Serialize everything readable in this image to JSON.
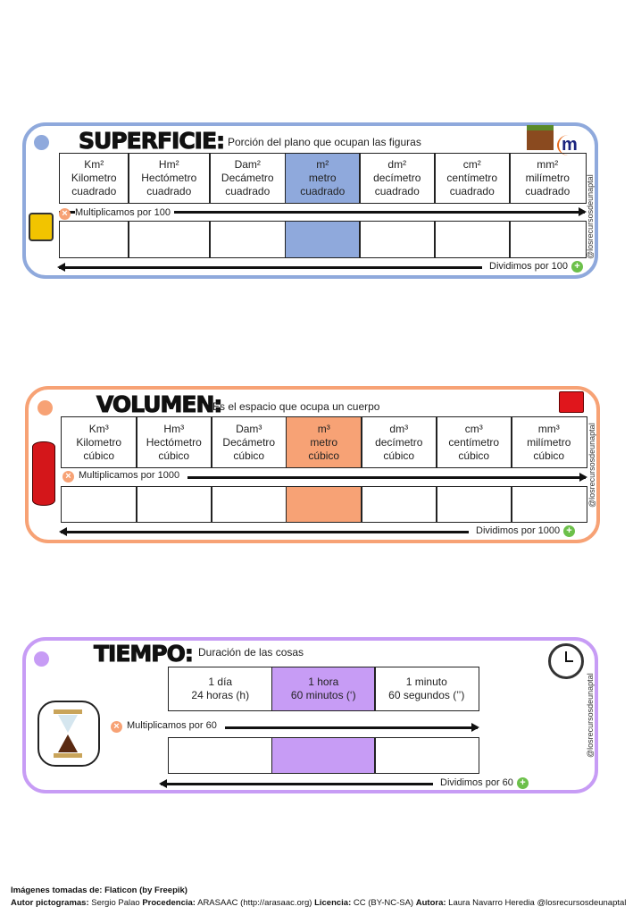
{
  "handle": "@losrecursosdeunaptal",
  "sections": [
    {
      "key": "superficie",
      "title": "SUPERFICIE:",
      "subtitle": "Porción del plano que ocupan las figuras",
      "color": "#8fa9dc",
      "units": [
        [
          "Km²",
          "Kilometro",
          "cuadrado"
        ],
        [
          "Hm²",
          "Hectómetro",
          "cuadrado"
        ],
        [
          "Dam²",
          "Decámetro",
          "cuadrado"
        ],
        [
          "m²",
          "metro",
          "cuadrado"
        ],
        [
          "dm²",
          "decímetro",
          "cuadrado"
        ],
        [
          "cm²",
          "centímetro",
          "cuadrado"
        ],
        [
          "mm²",
          "milímetro",
          "cuadrado"
        ]
      ],
      "highlight": 3,
      "multiply": "Multiplicamos por 100",
      "divide": "Dividimos por 100",
      "icon": "m2-icon",
      "icon_text": "m",
      "side_icon": "tape-measure-icon"
    },
    {
      "key": "volumen",
      "title": "VOLUMEN:",
      "subtitle": "Es el espacio que ocupa un cuerpo",
      "color": "#f7a275",
      "units": [
        [
          "Km³",
          "Kilometro",
          "cúbico"
        ],
        [
          "Hm³",
          "Hectómetro",
          "cúbico"
        ],
        [
          "Dam³",
          "Decámetro",
          "cúbico"
        ],
        [
          "m³",
          "metro",
          "cúbico"
        ],
        [
          "dm³",
          "decímetro",
          "cúbico"
        ],
        [
          "cm³",
          "centímetro",
          "cúbico"
        ],
        [
          "mm³",
          "milímetro",
          "cúbico"
        ]
      ],
      "highlight": 3,
      "multiply": "Multiplicamos por 1000",
      "divide": "Dividimos por 1000",
      "icon": "cube-icon",
      "side_icon": "cylinder-icon"
    },
    {
      "key": "tiempo",
      "title": "TIEMPO:",
      "subtitle": "Duración de las cosas",
      "color": "#c79cf5",
      "units": [
        [
          "1 día",
          "24 horas (h)"
        ],
        [
          "1 hora",
          "60 minutos (‘)"
        ],
        [
          "1 minuto",
          "60 segundos (’’)"
        ]
      ],
      "highlight": 1,
      "multiply": "Multiplicamos por 60",
      "divide": "Dividimos por 60",
      "icon": "clock-icon",
      "side_icon": "hourglass-icon"
    }
  ],
  "footer": {
    "line1_label": "Imágenes tomadas de:",
    "line1_value": "Flaticon (by Freepik)",
    "autor_label": "Autor pictogramas:",
    "autor": "Sergio Palao",
    "proc_label": "Procedencia:",
    "proc": "ARASAAC (http://arasaac.org)",
    "lic_label": "Licencia:",
    "lic": "CC (BY-NC-SA)",
    "autora_label": "Autora:",
    "autora": "Laura Navarro Heredia @losrecursosdeunaptal"
  }
}
